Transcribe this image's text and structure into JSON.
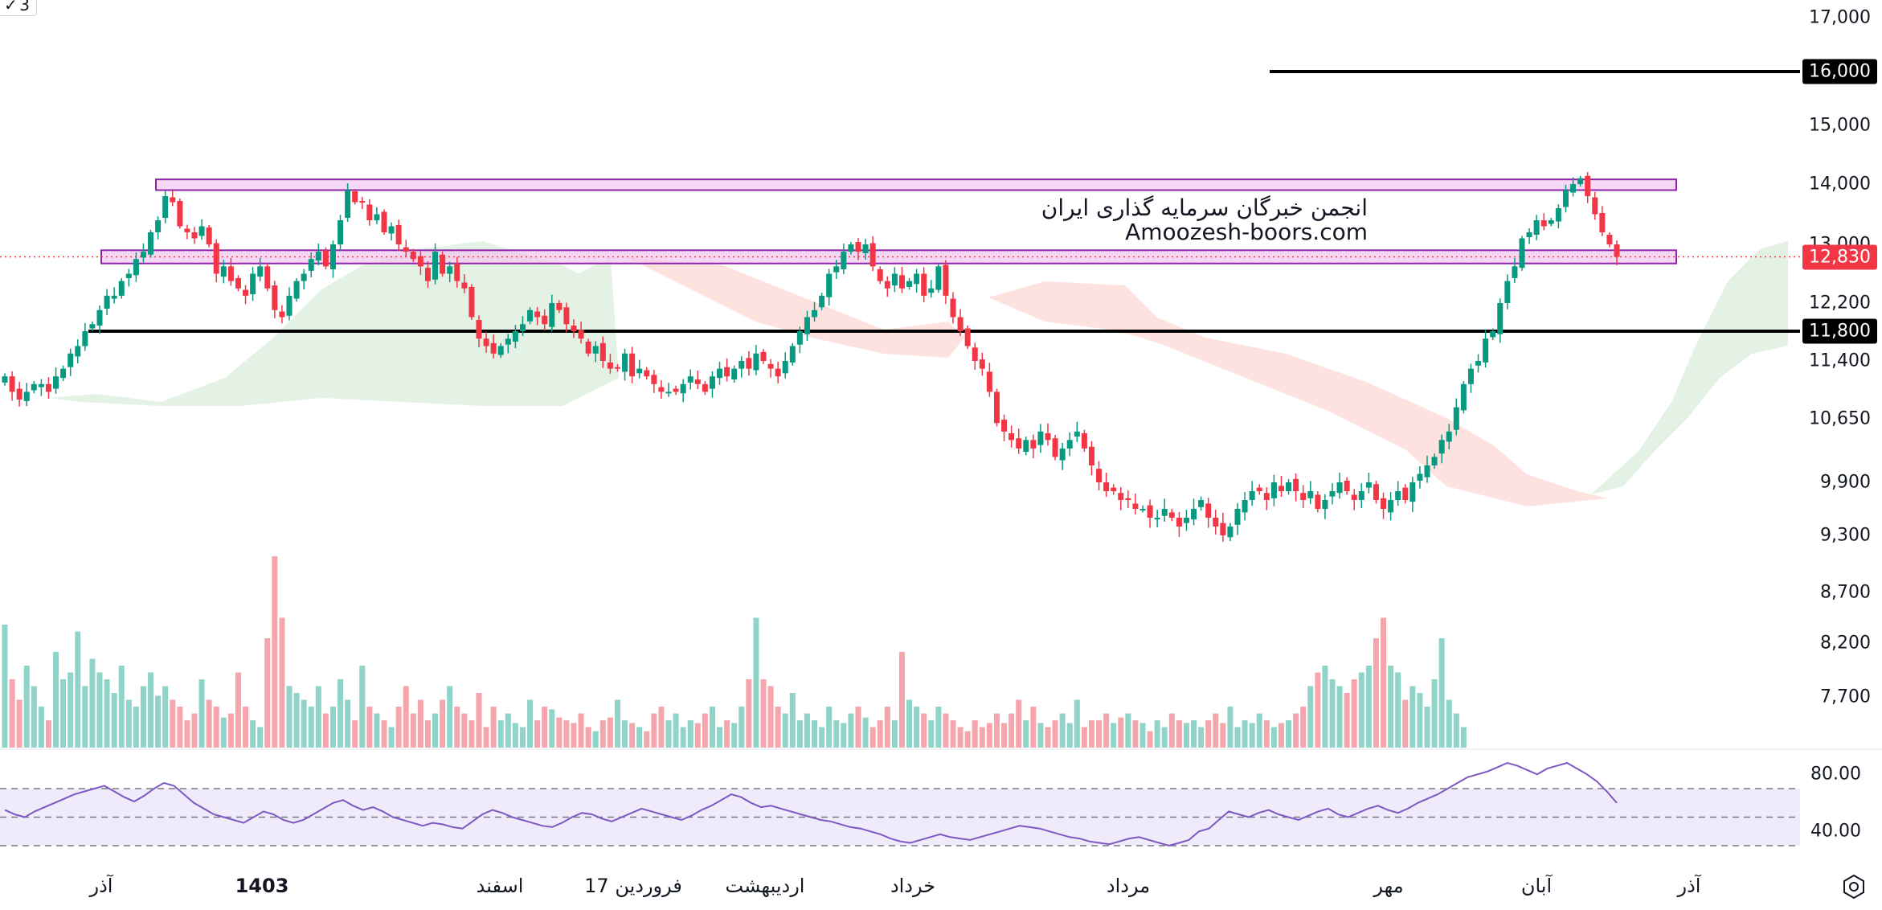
{
  "indicator_widget": {
    "label": "3"
  },
  "watermark": {
    "line1": "انجمن خبرگان سرمایه گذاری ایران",
    "line2": "Amoozesh-boors.com"
  },
  "colors": {
    "up": "#089981",
    "down": "#f23645",
    "up_volume": "#8fd3c9",
    "down_volume": "#f5a6ac",
    "rsi_line": "#7e57c2",
    "rsi_band": "#f0ebfa",
    "zone_fill": "#f3c8f0",
    "zone_border": "#8e24aa",
    "cloud_green": "#e3f2e5",
    "cloud_red": "#fde2e0"
  },
  "price_axis": {
    "ticks": [
      "17,000",
      "15,000",
      "14,000",
      "13,000",
      "12,200",
      "11,400",
      "10,650",
      "9,900",
      "9,300",
      "8,700",
      "8,200",
      "7,700"
    ],
    "badges": [
      {
        "text": "16,000",
        "value": 16000,
        "bg": "#000000"
      },
      {
        "text": "12,830",
        "value": 12830,
        "bg": "#f23645"
      },
      {
        "text": "11,800",
        "value": 11800,
        "bg": "#000000"
      }
    ]
  },
  "rsi_axis": {
    "ticks": [
      "80.00",
      "40.00"
    ]
  },
  "time_axis": {
    "labels": [
      {
        "text": "آذر",
        "bold": false
      },
      {
        "text": "1403",
        "bold": true
      },
      {
        "text": "اسفند",
        "bold": false
      },
      {
        "text": "17 فروردین",
        "bold": false
      },
      {
        "text": "اردیبهشت",
        "bold": false
      },
      {
        "text": "خرداد",
        "bold": false
      },
      {
        "text": "مرداد",
        "bold": false
      },
      {
        "text": "مهر",
        "bold": false
      },
      {
        "text": "آبان",
        "bold": false
      },
      {
        "text": "آذر",
        "bold": false
      }
    ]
  },
  "chart_data": {
    "type": "candlestick",
    "series_closes_approx": [
      11200,
      11000,
      10900,
      11000,
      11100,
      11100,
      11000,
      11200,
      11300,
      11500,
      11600,
      11800,
      11900,
      12100,
      12300,
      12300,
      12500,
      12600,
      12800,
      12900,
      13200,
      13400,
      13800,
      13700,
      13300,
      13200,
      13100,
      13300,
      13000,
      12600,
      12700,
      12500,
      12400,
      12300,
      12600,
      12700,
      12400,
      12100,
      12000,
      12300,
      12500,
      12600,
      12800,
      12900,
      12700,
      13000,
      13400,
      13900,
      13700,
      13700,
      13400,
      13500,
      13200,
      13300,
      13000,
      12900,
      12800,
      12700,
      12500,
      12900,
      12600,
      12700,
      12500,
      12400,
      12000,
      11700,
      11600,
      11500,
      11600,
      11700,
      11800,
      11900,
      12100,
      12000,
      11900,
      12200,
      12100,
      11900,
      11800,
      11700,
      11500,
      11600,
      11400,
      11300,
      11300,
      11500,
      11200,
      11300,
      11200,
      11100,
      11000,
      11000,
      11000,
      11100,
      11200,
      11100,
      11000,
      11200,
      11300,
      11200,
      11300,
      11400,
      11300,
      11500,
      11400,
      11300,
      11200,
      11400,
      11600,
      11800,
      12000,
      12100,
      12300,
      12600,
      12700,
      12900,
      13000,
      12900,
      13000,
      12700,
      12500,
      12400,
      12600,
      12400,
      12500,
      12600,
      12300,
      12400,
      12700,
      12300,
      12000,
      11800,
      11600,
      11400,
      11300,
      11000,
      10600,
      10500,
      10400,
      10300,
      10400,
      10300,
      10500,
      10400,
      10200,
      10300,
      10400,
      10500,
      10300,
      10100,
      9900,
      9800,
      9800,
      9700,
      9700,
      9600,
      9600,
      9500,
      9500,
      9600,
      9500,
      9400,
      9500,
      9600,
      9700,
      9500,
      9400,
      9300,
      9400,
      9600,
      9700,
      9800,
      9800,
      9700,
      9900,
      9800,
      9900,
      9800,
      9700,
      9800,
      9600,
      9700,
      9800,
      9900,
      9800,
      9700,
      9800,
      9900,
      9700,
      9600,
      9700,
      9800,
      9700,
      9900,
      10000,
      10100,
      10200,
      10400,
      10500,
      10800,
      11100,
      11300,
      11400,
      11700,
      11800,
      12200,
      12500,
      12700,
      13100,
      13200,
      13400,
      13300,
      13400,
      13600,
      13900,
      14000,
      14100,
      13800,
      13500,
      13200,
      13000,
      12830
    ],
    "horizontal_levels": [
      {
        "value": 16000,
        "label": "16,000"
      },
      {
        "value": 11800,
        "label": "11,800"
      }
    ],
    "zones": [
      {
        "from": 13900,
        "to": 14080
      },
      {
        "from": 12740,
        "to": 12920
      }
    ],
    "last_price": 12830,
    "rsi": {
      "upper": 70,
      "middle": 50,
      "lower": 30,
      "values": [
        55,
        52,
        50,
        54,
        57,
        60,
        63,
        66,
        68,
        70,
        72,
        68,
        64,
        61,
        65,
        70,
        74,
        72,
        66,
        60,
        56,
        52,
        50,
        48,
        46,
        50,
        54,
        52,
        48,
        46,
        48,
        52,
        56,
        60,
        62,
        58,
        55,
        57,
        54,
        50,
        48,
        46,
        44,
        46,
        45,
        43,
        42,
        47,
        52,
        55,
        53,
        50,
        48,
        46,
        44,
        43,
        46,
        50,
        53,
        52,
        49,
        47,
        50,
        53,
        56,
        54,
        52,
        50,
        48,
        51,
        55,
        58,
        62,
        66,
        64,
        60,
        57,
        58,
        56,
        54,
        52,
        50,
        48,
        47,
        45,
        43,
        42,
        40,
        38,
        35,
        33,
        32,
        34,
        36,
        38,
        36,
        35,
        34,
        36,
        38,
        40,
        42,
        44,
        43,
        42,
        40,
        38,
        36,
        35,
        33,
        32,
        31,
        33,
        35,
        36,
        34,
        32,
        30,
        32,
        34,
        40,
        42,
        48,
        54,
        52,
        50,
        53,
        55,
        52,
        50,
        48,
        51,
        54,
        56,
        52,
        50,
        53,
        56,
        58,
        55,
        53,
        56,
        60,
        63,
        66,
        70,
        74,
        78,
        80,
        82,
        85,
        88,
        86,
        83,
        80,
        84,
        86,
        88,
        84,
        80,
        75,
        68,
        60
      ]
    },
    "volume_relative": [
      0.9,
      0.5,
      0.35,
      0.6,
      0.45,
      0.3,
      0.2,
      0.7,
      0.5,
      0.55,
      0.85,
      0.45,
      0.65,
      0.55,
      0.5,
      0.4,
      0.6,
      0.35,
      0.3,
      0.45,
      0.55,
      0.38,
      0.45,
      0.35,
      0.3,
      0.2,
      0.25,
      0.5,
      0.35,
      0.3,
      0.22,
      0.25,
      0.55,
      0.3,
      0.2,
      0.15,
      0.8,
      1.4,
      0.95,
      0.45,
      0.4,
      0.35,
      0.3,
      0.45,
      0.25,
      0.3,
      0.5,
      0.35,
      0.2,
      0.6,
      0.3,
      0.25,
      0.2,
      0.15,
      0.3,
      0.45,
      0.25,
      0.35,
      0.2,
      0.25,
      0.35,
      0.45,
      0.3,
      0.25,
      0.2,
      0.4,
      0.15,
      0.3,
      0.2,
      0.25,
      0.18,
      0.15,
      0.35,
      0.2,
      0.3,
      0.28,
      0.22,
      0.2,
      0.18,
      0.25,
      0.15,
      0.12,
      0.2,
      0.22,
      0.35,
      0.2,
      0.18,
      0.15,
      0.12,
      0.25,
      0.3,
      0.2,
      0.25,
      0.15,
      0.2,
      0.18,
      0.25,
      0.3,
      0.15,
      0.2,
      0.18,
      0.3,
      0.5,
      0.95,
      0.5,
      0.45,
      0.3,
      0.25,
      0.4,
      0.2,
      0.25,
      0.2,
      0.15,
      0.3,
      0.2,
      0.18,
      0.25,
      0.3,
      0.22,
      0.15,
      0.2,
      0.3,
      0.2,
      0.7,
      0.35,
      0.3,
      0.25,
      0.2,
      0.3,
      0.25,
      0.2,
      0.15,
      0.12,
      0.2,
      0.15,
      0.18,
      0.25,
      0.18,
      0.25,
      0.35,
      0.2,
      0.3,
      0.18,
      0.15,
      0.2,
      0.25,
      0.18,
      0.35,
      0.15,
      0.2,
      0.2,
      0.25,
      0.18,
      0.22,
      0.25,
      0.2,
      0.18,
      0.12,
      0.2,
      0.15,
      0.25,
      0.2,
      0.18,
      0.2,
      0.15,
      0.2,
      0.25,
      0.18,
      0.3,
      0.15,
      0.2,
      0.18,
      0.25,
      0.2,
      0.15,
      0.18,
      0.2,
      0.25,
      0.3,
      0.45,
      0.55,
      0.6,
      0.5,
      0.45,
      0.4,
      0.5,
      0.55,
      0.6,
      0.8,
      0.95,
      0.6,
      0.55,
      0.35,
      0.45,
      0.4,
      0.3,
      0.5,
      0.8,
      0.35,
      0.25,
      0.15
    ]
  }
}
